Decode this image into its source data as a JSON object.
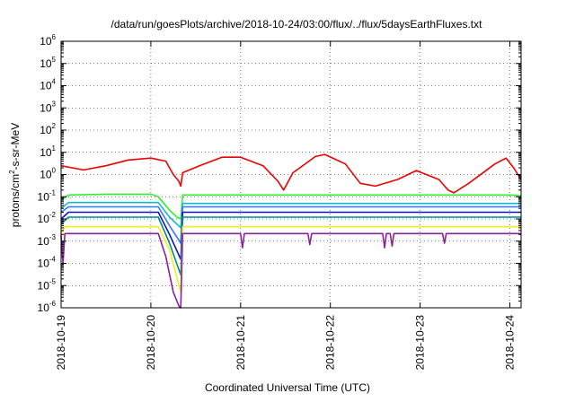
{
  "chart_data": {
    "type": "line",
    "title": "/data/run/goesPlots/archive/2018-10-24/03:00/flux/../flux/5daysEarthFluxes.txt",
    "xlabel": "Coordinated Universal Time (UTC)",
    "ylabel": {
      "base": "protons/cm",
      "sup": "2",
      "rest": "-s-sr-MeV"
    },
    "y_scale": "log",
    "ylim": [
      1e-06,
      1000000.0
    ],
    "y_ticks": [
      {
        "exp": "-6"
      },
      {
        "exp": "-5"
      },
      {
        "exp": "-4"
      },
      {
        "exp": "-3"
      },
      {
        "exp": "-2"
      },
      {
        "exp": "-1"
      },
      {
        "exp": "0"
      },
      {
        "exp": "1"
      },
      {
        "exp": "2"
      },
      {
        "exp": "3"
      },
      {
        "exp": "4"
      },
      {
        "exp": "5"
      },
      {
        "exp": "6"
      }
    ],
    "y_tick_base": "10",
    "xlim": [
      "2018-10-19T00:00",
      "2018-10-24T03:00"
    ],
    "x_ticks": [
      "2018-10-19",
      "2018-10-20",
      "2018-10-21",
      "2018-10-22",
      "2018-10-23",
      "2018-10-24"
    ],
    "grid": true,
    "legend": "none",
    "series": [
      {
        "color": "#ee0000",
        "points": [
          [
            "2018-10-19T00:00",
            2.5
          ],
          [
            "2018-10-19T06:00",
            1.6
          ],
          [
            "2018-10-19T12:00",
            2.5
          ],
          [
            "2018-10-19T18:00",
            4.5
          ],
          [
            "2018-10-20T00:00",
            5.5
          ],
          [
            "2018-10-20T04:00",
            4.0
          ],
          [
            "2018-10-20T06:00",
            1.0
          ],
          [
            "2018-10-20T07:30",
            0.5
          ],
          [
            "2018-10-20T08:00",
            0.3
          ],
          [
            "2018-10-20T08:30",
            1.2
          ],
          [
            "2018-10-20T13:00",
            2.5
          ],
          [
            "2018-10-20T19:00",
            6.0
          ],
          [
            "2018-10-21T00:00",
            6.0
          ],
          [
            "2018-10-21T06:00",
            2.5
          ],
          [
            "2018-10-21T10:00",
            0.5
          ],
          [
            "2018-10-21T11:30",
            0.2
          ],
          [
            "2018-10-21T14:00",
            1.2
          ],
          [
            "2018-10-21T20:00",
            6.5
          ],
          [
            "2018-10-21T22:30",
            8.0
          ],
          [
            "2018-10-22T04:00",
            3.0
          ],
          [
            "2018-10-22T08:00",
            0.4
          ],
          [
            "2018-10-22T12:00",
            0.3
          ],
          [
            "2018-10-22T18:00",
            0.6
          ],
          [
            "2018-10-22T23:00",
            1.5
          ],
          [
            "2018-10-23T05:00",
            0.6
          ],
          [
            "2018-10-23T07:30",
            0.2
          ],
          [
            "2018-10-23T09:00",
            0.15
          ],
          [
            "2018-10-23T13:00",
            0.4
          ],
          [
            "2018-10-23T20:00",
            3.0
          ],
          [
            "2018-10-23T23:00",
            5.5
          ],
          [
            "2018-10-24T01:00",
            2.0
          ],
          [
            "2018-10-24T03:00",
            0.6
          ]
        ]
      },
      {
        "color": "#33ee33",
        "points": [
          [
            "2018-10-19T00:00",
            0.07
          ],
          [
            "2018-10-19T02:00",
            0.12
          ],
          [
            "2018-10-19T12:00",
            0.13
          ],
          [
            "2018-10-20T00:00",
            0.13
          ],
          [
            "2018-10-20T02:00",
            0.1
          ],
          [
            "2018-10-20T05:00",
            0.025
          ],
          [
            "2018-10-20T07:00",
            0.012
          ],
          [
            "2018-10-20T08:00",
            0.01
          ],
          [
            "2018-10-20T08:30",
            0.12
          ],
          [
            "2018-10-21T00:00",
            0.12
          ],
          [
            "2018-10-22T00:00",
            0.12
          ],
          [
            "2018-10-23T00:00",
            0.12
          ],
          [
            "2018-10-24T00:00",
            0.12
          ],
          [
            "2018-10-24T03:00",
            0.11
          ]
        ]
      },
      {
        "color": "#11bbcc",
        "points": [
          [
            "2018-10-19T00:00",
            0.03
          ],
          [
            "2018-10-19T02:00",
            0.055
          ],
          [
            "2018-10-20T02:00",
            0.055
          ],
          [
            "2018-10-20T05:00",
            0.012
          ],
          [
            "2018-10-20T08:00",
            0.004
          ],
          [
            "2018-10-20T08:30",
            0.05
          ],
          [
            "2018-10-24T03:00",
            0.05
          ]
        ]
      },
      {
        "color": "#3377ff",
        "points": [
          [
            "2018-10-19T00:00",
            0.02
          ],
          [
            "2018-10-19T02:00",
            0.035
          ],
          [
            "2018-10-20T02:00",
            0.035
          ],
          [
            "2018-10-20T05:00",
            0.005
          ],
          [
            "2018-10-20T08:00",
            0.0008
          ],
          [
            "2018-10-20T08:30",
            0.035
          ],
          [
            "2018-10-24T03:00",
            0.035
          ]
        ]
      },
      {
        "color": "#1111cc",
        "points": [
          [
            "2018-10-19T00:00",
            0.01
          ],
          [
            "2018-10-19T02:00",
            0.02
          ],
          [
            "2018-10-20T02:00",
            0.02
          ],
          [
            "2018-10-20T05:00",
            0.002
          ],
          [
            "2018-10-20T08:00",
            0.00015
          ],
          [
            "2018-10-20T08:30",
            0.02
          ],
          [
            "2018-10-24T03:00",
            0.02
          ]
        ]
      },
      {
        "color": "#008888",
        "points": [
          [
            "2018-10-19T00:00",
            0.006
          ],
          [
            "2018-10-19T02:00",
            0.012
          ],
          [
            "2018-10-20T02:00",
            0.012
          ],
          [
            "2018-10-20T05:00",
            0.0008
          ],
          [
            "2018-10-20T08:00",
            3e-05
          ],
          [
            "2018-10-20T08:30",
            0.012
          ],
          [
            "2018-10-24T03:00",
            0.012
          ]
        ]
      },
      {
        "color": "#eeee22",
        "points": [
          [
            "2018-10-19T00:00",
            0.002
          ],
          [
            "2018-10-19T01:00",
            0.0045
          ],
          [
            "2018-10-20T02:00",
            0.0045
          ],
          [
            "2018-10-20T05:00",
            0.0004
          ],
          [
            "2018-10-20T08:00",
            5e-06
          ],
          [
            "2018-10-20T08:30",
            0.0045
          ],
          [
            "2018-10-24T03:00",
            0.0045
          ]
        ]
      },
      {
        "color": "#882299",
        "points": [
          [
            "2018-10-19T00:00",
            0.0018
          ],
          [
            "2018-10-19T00:30",
            0.0001
          ],
          [
            "2018-10-19T01:00",
            0.0022
          ],
          [
            "2018-10-20T02:00",
            0.0022
          ],
          [
            "2018-10-20T04:00",
            0.0002
          ],
          [
            "2018-10-20T06:00",
            5e-06
          ],
          [
            "2018-10-20T07:30",
            1.2e-06
          ],
          [
            "2018-10-20T08:00",
            1e-06
          ],
          [
            "2018-10-20T08:30",
            0.0022
          ],
          [
            "2018-10-21T00:00",
            0.0022
          ],
          [
            "2018-10-21T00:30",
            0.0005
          ],
          [
            "2018-10-21T01:00",
            0.0022
          ],
          [
            "2018-10-21T18:00",
            0.0022
          ],
          [
            "2018-10-21T18:30",
            0.0007
          ],
          [
            "2018-10-21T19:00",
            0.0022
          ],
          [
            "2018-10-22T14:00",
            0.0022
          ],
          [
            "2018-10-22T14:30",
            0.0005
          ],
          [
            "2018-10-22T15:00",
            0.0022
          ],
          [
            "2018-10-22T16:00",
            0.0022
          ],
          [
            "2018-10-22T16:30",
            0.0006
          ],
          [
            "2018-10-22T17:00",
            0.0022
          ],
          [
            "2018-10-23T06:00",
            0.0022
          ],
          [
            "2018-10-23T06:30",
            0.0008
          ],
          [
            "2018-10-23T07:00",
            0.0022
          ],
          [
            "2018-10-24T03:00",
            0.0022
          ]
        ]
      }
    ]
  }
}
